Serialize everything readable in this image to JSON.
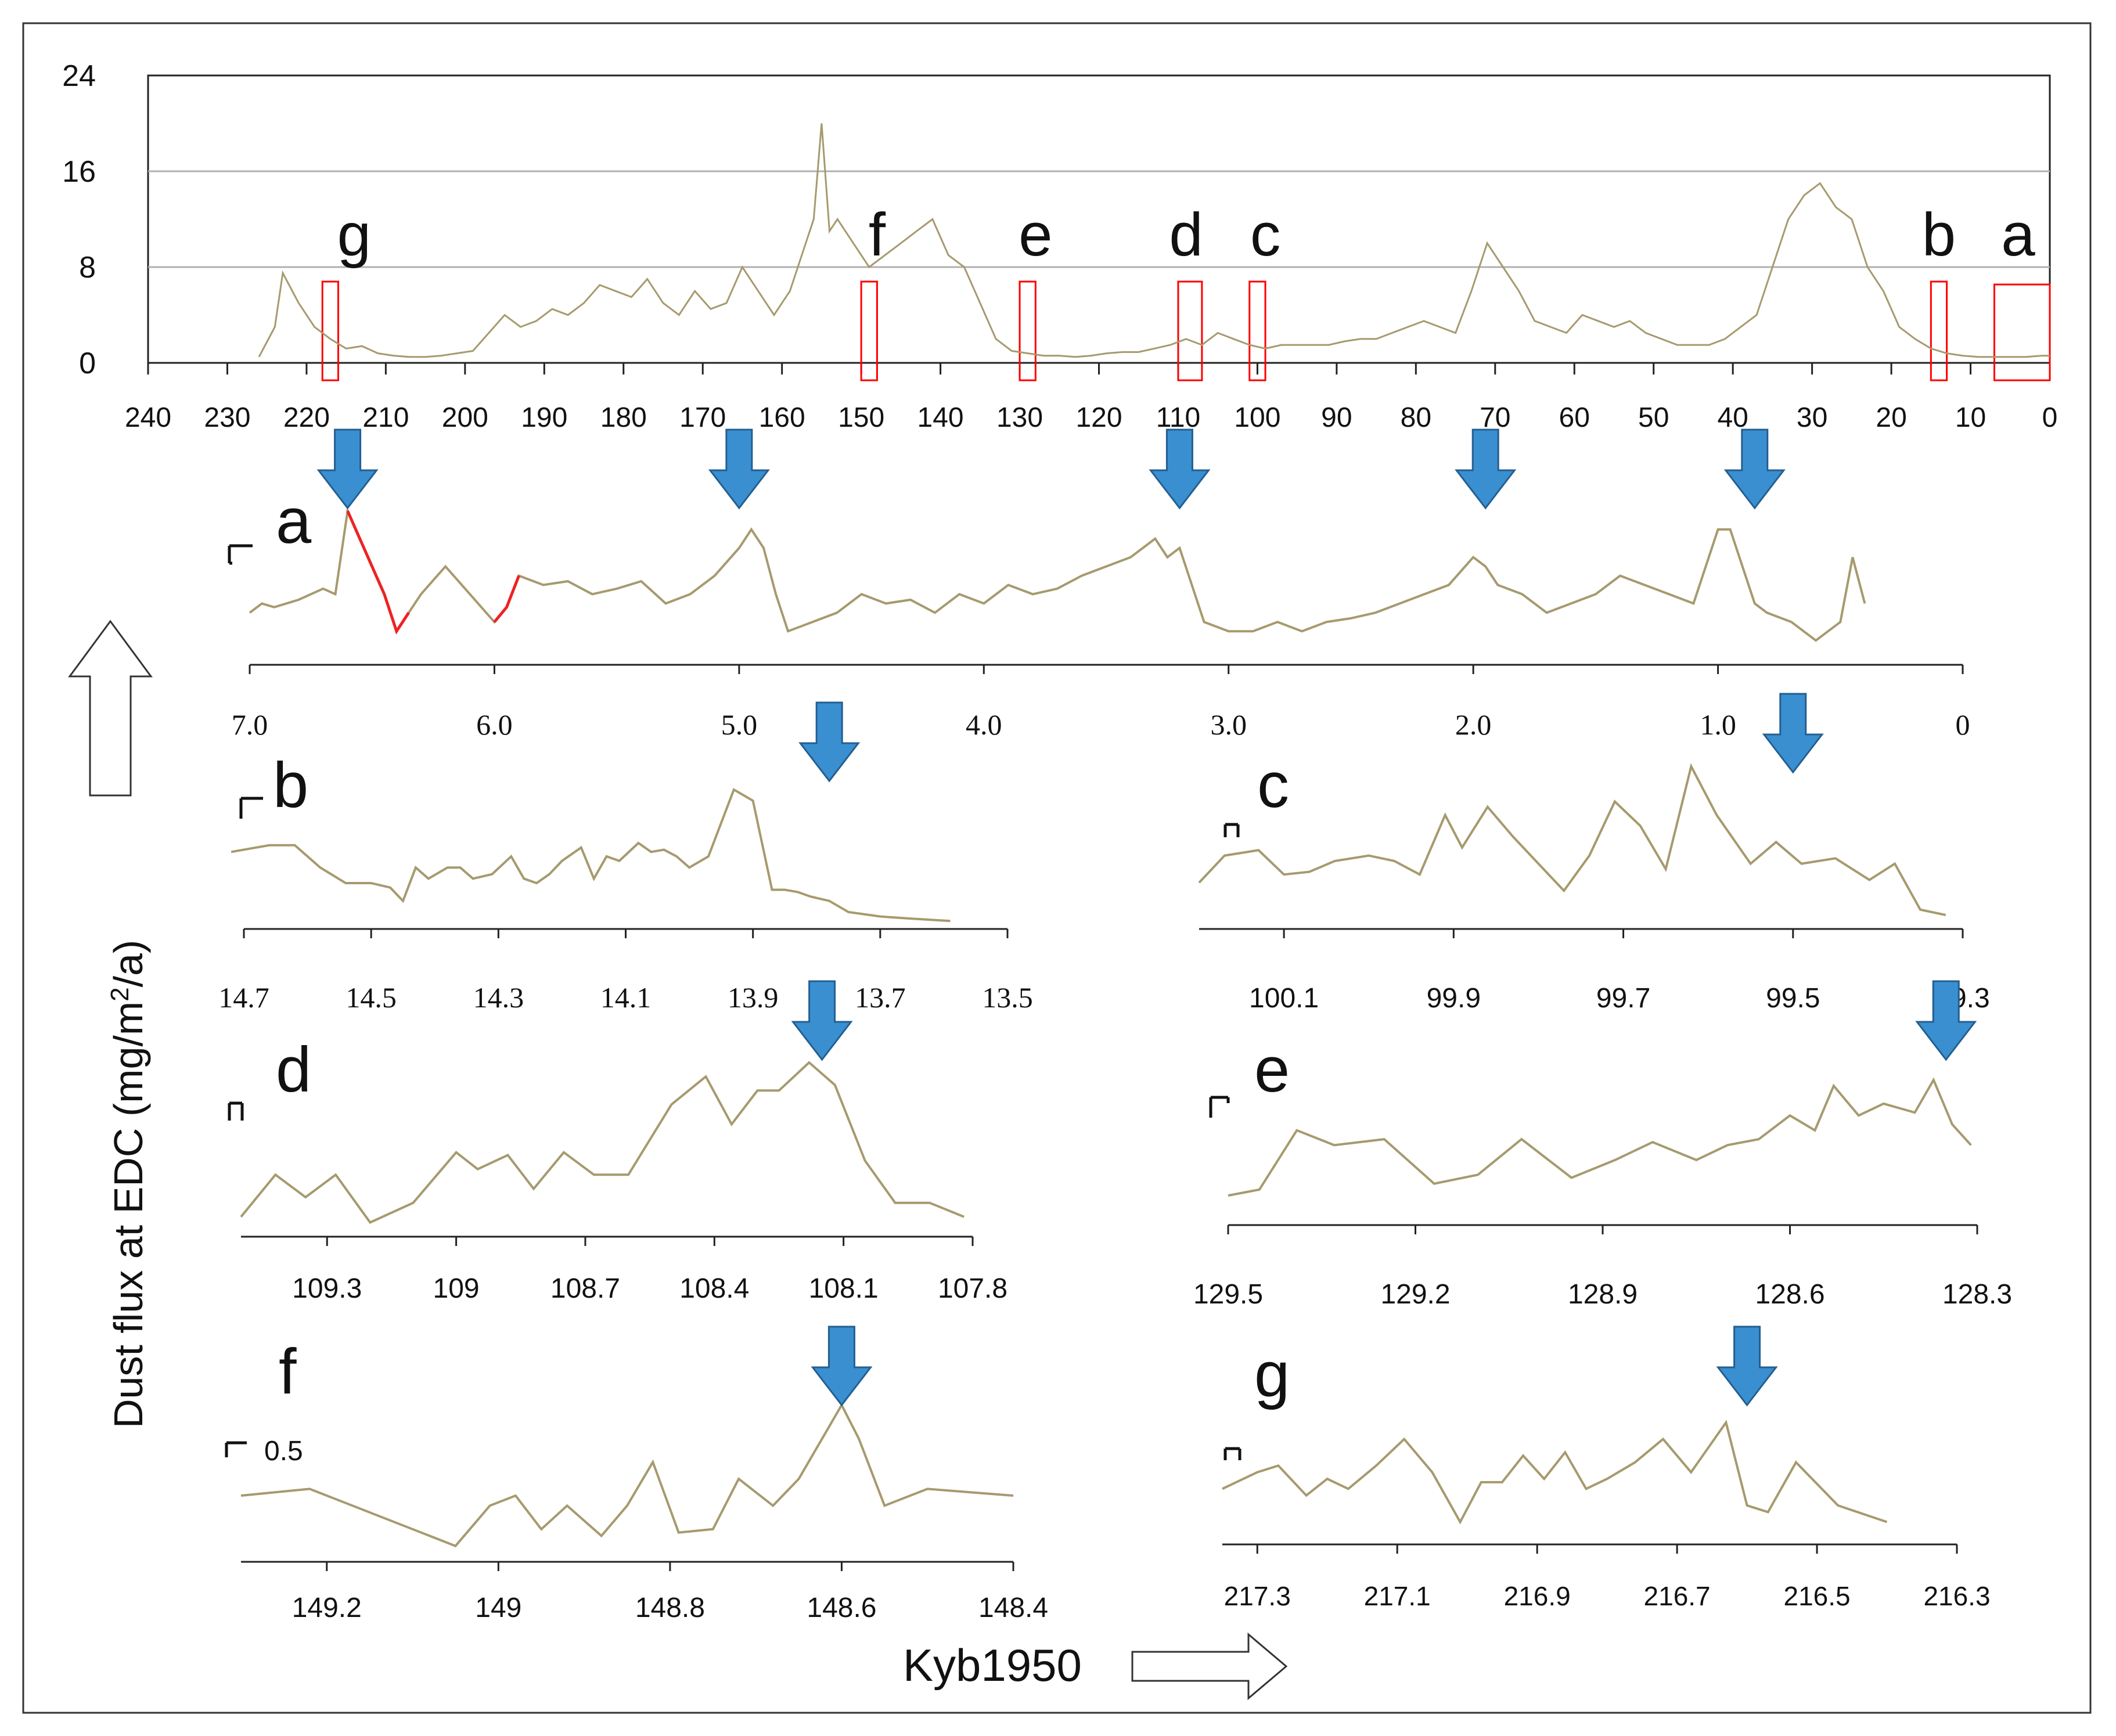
{
  "figure": {
    "y_axis_label": "Dust flux at EDC  (mg/m",
    "y_axis_label_sup": "2",
    "y_axis_label_end": "/a)",
    "x_axis_label": "Kyb1950",
    "scale_bar_label": "0.5"
  },
  "colors": {
    "series": "#a69a6e",
    "highlight": "#ee2222",
    "marker": "#ff0000",
    "arrow": "#3a8fd0",
    "grid": "#b0b0b0"
  },
  "chart_data": [
    {
      "id": "main",
      "type": "line",
      "title": "",
      "xlim": [
        240,
        0
      ],
      "ylim": [
        0,
        24
      ],
      "x_ticks": [
        "240",
        "230",
        "220",
        "210",
        "200",
        "190",
        "180",
        "170",
        "160",
        "150",
        "140",
        "130",
        "120",
        "110",
        "100",
        "90",
        "80",
        "70",
        "60",
        "50",
        "40",
        "30",
        "20",
        "10",
        "0"
      ],
      "y_ticks": [
        "0",
        "8",
        "16",
        "24"
      ],
      "grid": true,
      "series": [
        {
          "name": "Dust flux",
          "x": [
            226,
            224,
            223,
            221,
            219,
            217,
            215,
            213,
            211,
            209,
            207,
            205,
            203,
            201,
            199,
            197,
            195,
            193,
            191,
            189,
            187,
            185,
            183,
            181,
            179,
            177,
            175,
            173,
            171,
            169,
            167,
            165,
            163,
            161,
            159,
            157,
            156,
            155,
            154,
            153,
            151,
            149,
            147,
            145,
            143,
            141,
            139,
            137,
            135,
            133,
            131,
            129,
            127,
            125,
            123,
            121,
            119,
            117,
            115,
            113,
            111,
            109,
            107,
            105,
            103,
            101,
            99,
            97,
            95,
            93,
            91,
            89,
            87,
            85,
            83,
            81,
            79,
            77,
            75,
            73,
            71,
            69,
            67,
            65,
            63,
            61,
            59,
            57,
            55,
            53,
            51,
            49,
            47,
            45,
            43,
            41,
            39,
            37,
            35,
            33,
            31,
            29,
            27,
            25,
            23,
            21,
            19,
            17,
            15,
            13,
            11,
            9,
            7,
            5,
            3,
            1,
            0
          ],
          "y": [
            0.5,
            3,
            7.5,
            5,
            3,
            2,
            1.2,
            1.4,
            0.8,
            0.6,
            0.5,
            0.5,
            0.6,
            0.8,
            1,
            2.5,
            4,
            3,
            3.5,
            4.5,
            4,
            5,
            6.5,
            6,
            5.5,
            7,
            5,
            4,
            6,
            4.5,
            5,
            8,
            6,
            4,
            6,
            10,
            12,
            20,
            11,
            12,
            10,
            8,
            9,
            10,
            11,
            12,
            9,
            8,
            5,
            2,
            1,
            0.8,
            0.6,
            0.6,
            0.5,
            0.6,
            0.8,
            0.9,
            0.9,
            1.2,
            1.5,
            2,
            1.5,
            2.5,
            2,
            1.5,
            1.2,
            1.5,
            1.5,
            1.5,
            1.5,
            1.8,
            2,
            2,
            2.5,
            3,
            3.5,
            3,
            2.5,
            6,
            10,
            8,
            6,
            3.5,
            3,
            2.5,
            4,
            3.5,
            3,
            3.5,
            2.5,
            2,
            1.5,
            1.5,
            1.5,
            2,
            3,
            4,
            8,
            12,
            14,
            15,
            13,
            12,
            8,
            6,
            3,
            2,
            1.2,
            0.8,
            0.6,
            0.5,
            0.5,
            0.5,
            0.5,
            0.6,
            0.6
          ]
        }
      ],
      "annotations": [
        {
          "label": "g",
          "x": 214,
          "range": [
            216,
            218
          ]
        },
        {
          "label": "f",
          "x": 148,
          "range": [
            148,
            150
          ]
        },
        {
          "label": "e",
          "x": 128,
          "range": [
            128,
            130
          ]
        },
        {
          "label": "d",
          "x": 109,
          "range": [
            107,
            110
          ]
        },
        {
          "label": "c",
          "x": 99,
          "range": [
            99,
            101
          ]
        },
        {
          "label": "b",
          "x": 14,
          "range": [
            13,
            15
          ]
        },
        {
          "label": "a",
          "x": 4,
          "range": [
            0,
            7
          ]
        }
      ]
    },
    {
      "id": "a",
      "type": "line",
      "title": "a",
      "xlim": [
        7.0,
        0
      ],
      "x_ticks": [
        "7.0",
        "6.0",
        "5.0",
        "4.0",
        "3.0",
        "2.0",
        "1.0",
        "0"
      ],
      "x": [
        7.0,
        6.95,
        6.9,
        6.8,
        6.7,
        6.65,
        6.6,
        6.55,
        6.5,
        6.45,
        6.4,
        6.35,
        6.3,
        6.2,
        6.1,
        6.0,
        5.95,
        5.9,
        5.8,
        5.7,
        5.6,
        5.5,
        5.4,
        5.3,
        5.2,
        5.1,
        5.0,
        4.95,
        4.9,
        4.85,
        4.8,
        4.7,
        4.6,
        4.5,
        4.4,
        4.3,
        4.2,
        4.1,
        4.0,
        3.9,
        3.8,
        3.7,
        3.6,
        3.5,
        3.4,
        3.3,
        3.25,
        3.2,
        3.15,
        3.1,
        3.0,
        2.9,
        2.8,
        2.7,
        2.6,
        2.5,
        2.4,
        2.3,
        2.2,
        2.1,
        2.0,
        1.95,
        1.9,
        1.8,
        1.7,
        1.6,
        1.5,
        1.4,
        1.3,
        1.2,
        1.1,
        1.0,
        0.95,
        0.9,
        0.85,
        0.8,
        0.7,
        0.6,
        0.5,
        0.45,
        0.4
      ],
      "y": [
        2.5,
        3,
        2.8,
        3.2,
        3.8,
        3.5,
        8,
        6.5,
        5,
        3.5,
        1.5,
        2.5,
        3.5,
        5,
        3.5,
        2,
        2.8,
        4.5,
        4,
        4.2,
        3.5,
        3.8,
        4.2,
        3,
        3.5,
        4.5,
        6,
        7,
        6,
        3.5,
        1.5,
        2,
        2.5,
        3.5,
        3,
        3.2,
        2.5,
        3.5,
        3,
        4,
        3.5,
        3.8,
        4.5,
        5,
        5.5,
        6.5,
        5.5,
        6,
        4,
        2,
        1.5,
        1.5,
        2,
        1.5,
        2,
        2.2,
        2.5,
        3,
        3.5,
        4,
        5.5,
        5,
        4,
        3.5,
        2.5,
        3,
        3.5,
        4.5,
        4,
        3.5,
        3,
        7,
        7,
        5,
        3,
        2.5,
        2,
        1,
        2,
        5.5,
        3
      ],
      "highlight_ranges": [
        [
          6.6,
          6.35
        ],
        [
          6.0,
          5.9
        ]
      ],
      "arrows": [
        6.6,
        5.0,
        3.2,
        1.95,
        0.85
      ]
    },
    {
      "id": "b",
      "type": "line",
      "title": "b",
      "xlim": [
        14.7,
        13.5
      ],
      "x_ticks": [
        "14.7",
        "14.5",
        "14.3",
        "14.1",
        "13.9",
        "13.7",
        "13.5"
      ],
      "x": [
        14.72,
        14.66,
        14.62,
        14.58,
        14.54,
        14.5,
        14.47,
        14.45,
        14.43,
        14.41,
        14.38,
        14.36,
        14.34,
        14.31,
        14.28,
        14.26,
        14.24,
        14.22,
        14.2,
        14.17,
        14.15,
        14.13,
        14.11,
        14.08,
        14.06,
        14.04,
        14.02,
        14.0,
        13.97,
        13.95,
        13.93,
        13.9,
        13.87,
        13.85,
        13.83,
        13.81,
        13.78,
        13.75,
        13.7,
        13.65,
        13.59
      ],
      "y": [
        3.2,
        3.5,
        3.5,
        2.5,
        1.8,
        1.8,
        1.6,
        1,
        2.5,
        2,
        2.5,
        2.5,
        2,
        2.2,
        3,
        2,
        1.8,
        2.2,
        2.8,
        3.4,
        2,
        3,
        2.8,
        3.6,
        3.2,
        3.3,
        3,
        2.5,
        3,
        4.5,
        6,
        5.5,
        1.5,
        1.5,
        1.4,
        1.2,
        1,
        0.5,
        0.3,
        0.2,
        0.1
      ],
      "arrows": [
        13.78
      ]
    },
    {
      "id": "c",
      "type": "line",
      "title": "c",
      "xlim": [
        100.2,
        99.3
      ],
      "x_ticks": [
        "100.1",
        "99.9",
        "99.7",
        "99.5",
        "99.3"
      ],
      "x": [
        100.2,
        100.17,
        100.13,
        100.1,
        100.07,
        100.04,
        100.0,
        99.97,
        99.94,
        99.91,
        99.89,
        99.86,
        99.83,
        99.8,
        99.77,
        99.74,
        99.71,
        99.68,
        99.65,
        99.62,
        99.59,
        99.55,
        99.52,
        99.49,
        99.45,
        99.41,
        99.38,
        99.35,
        99.32
      ],
      "y": [
        1.5,
        2.5,
        2.7,
        1.8,
        1.9,
        2.3,
        2.5,
        2.3,
        1.8,
        4,
        2.8,
        4.3,
        3.2,
        2.2,
        1.2,
        2.5,
        4.5,
        3.6,
        2,
        5.8,
        4,
        2.2,
        3,
        2.2,
        2.4,
        1.6,
        2.2,
        0.5,
        0.3
      ],
      "arrows": [
        99.5
      ]
    },
    {
      "id": "d",
      "type": "line",
      "title": "d",
      "xlim": [
        109.5,
        107.8
      ],
      "x_ticks": [
        "109.3",
        "109",
        "108.7",
        "108.4",
        "108.1",
        "107.8"
      ],
      "x": [
        109.5,
        109.42,
        109.35,
        109.28,
        109.2,
        109.1,
        109.0,
        108.95,
        108.88,
        108.82,
        108.75,
        108.68,
        108.6,
        108.5,
        108.42,
        108.36,
        108.3,
        108.25,
        108.18,
        108.12,
        108.05,
        107.98,
        107.9,
        107.82
      ],
      "y": [
        0.5,
        2,
        1.2,
        2,
        0.3,
        1,
        2.8,
        2.2,
        2.7,
        1.5,
        2.8,
        2,
        2,
        4.5,
        5.5,
        3.8,
        5,
        5,
        6,
        5.2,
        2.5,
        1,
        1,
        0.5
      ],
      "arrows": [
        108.15
      ]
    },
    {
      "id": "e",
      "type": "line",
      "title": "e",
      "xlim": [
        129.5,
        128.3
      ],
      "x_ticks": [
        "129.5",
        "129.2",
        "128.9",
        "128.6",
        "128.3"
      ],
      "x": [
        129.5,
        129.45,
        129.39,
        129.33,
        129.25,
        129.17,
        129.1,
        129.03,
        128.95,
        128.88,
        128.82,
        128.75,
        128.7,
        128.65,
        128.6,
        128.56,
        128.53,
        128.49,
        128.45,
        128.4,
        128.37,
        128.34,
        128.31
      ],
      "y": [
        0.8,
        1,
        3,
        2.5,
        2.7,
        1.2,
        1.5,
        2.7,
        1.4,
        2,
        2.6,
        2,
        2.5,
        2.7,
        3.5,
        3,
        4.5,
        3.5,
        3.9,
        3.6,
        4.7,
        3.2,
        2.5
      ],
      "arrows": [
        128.35
      ]
    },
    {
      "id": "f",
      "type": "line",
      "title": "f",
      "xlim": [
        149.3,
        148.4
      ],
      "x_ticks": [
        "149.2",
        "149",
        "148.8",
        "148.6",
        "148.4"
      ],
      "x": [
        149.3,
        149.22,
        149.17,
        149.1,
        149.05,
        149.01,
        148.98,
        148.95,
        148.92,
        148.88,
        148.85,
        148.82,
        148.79,
        148.75,
        148.72,
        148.68,
        148.65,
        148.6,
        148.58,
        148.55,
        148.5,
        148.45,
        148.4
      ],
      "y": [
        1.8,
        2,
        1.5,
        0.8,
        0.3,
        1.5,
        1.8,
        0.8,
        1.5,
        0.6,
        1.5,
        2.8,
        0.7,
        0.8,
        2.3,
        1.5,
        2.3,
        4.5,
        3.5,
        1.5,
        2,
        1.9,
        1.8
      ],
      "arrows": [
        148.6
      ]
    },
    {
      "id": "g",
      "type": "line",
      "title": "g",
      "xlim": [
        217.35,
        216.3
      ],
      "x_ticks": [
        "217.3",
        "217.1",
        "216.9",
        "216.7",
        "216.5",
        "216.3"
      ],
      "x": [
        217.35,
        217.3,
        217.27,
        217.23,
        217.2,
        217.17,
        217.13,
        217.09,
        217.05,
        217.01,
        216.98,
        216.95,
        216.92,
        216.89,
        216.86,
        216.83,
        216.8,
        216.76,
        216.72,
        216.68,
        216.63,
        216.6,
        216.57,
        216.53,
        216.47,
        216.4
      ],
      "y": [
        1.5,
        2,
        2.2,
        1.3,
        1.8,
        1.5,
        2.2,
        3,
        2,
        0.5,
        1.7,
        1.7,
        2.5,
        1.8,
        2.6,
        1.5,
        1.8,
        2.3,
        3,
        2,
        3.5,
        1,
        0.8,
        2.3,
        1,
        0.5
      ],
      "arrows": [
        216.6
      ]
    }
  ]
}
